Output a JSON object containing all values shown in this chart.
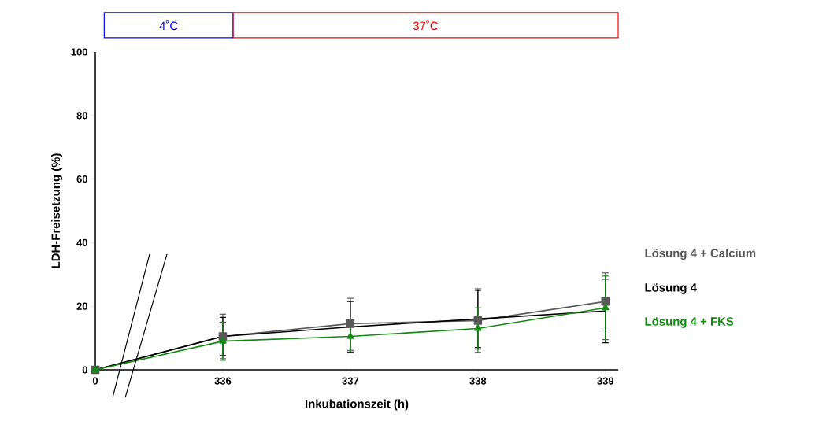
{
  "chart_data": {
    "type": "line",
    "xlabel": "Inkubationszeit (h)",
    "ylabel": "LDH-Freisetzung (%)",
    "categories": [
      "0",
      "336",
      "337",
      "338",
      "339"
    ],
    "ylim": [
      0,
      100
    ],
    "yticks": [
      0,
      20,
      40,
      60,
      80,
      100
    ],
    "grid": false,
    "legend": "right",
    "annotations": [
      "4˚C",
      "37˚C"
    ],
    "series": [
      {
        "name": "Lösung 4 + Calcium",
        "color": "#595959",
        "marker": "square",
        "values": [
          0,
          10.5,
          14.5,
          15.5,
          21.5
        ],
        "errors": [
          null,
          7,
          8,
          10,
          9
        ]
      },
      {
        "name": "Lösung 4",
        "color": "#000000",
        "marker": "none",
        "values": [
          0,
          10.5,
          13.5,
          16,
          18.5
        ],
        "errors": [
          null,
          6,
          8,
          9,
          10
        ]
      },
      {
        "name": "Lösung 4 + FKS",
        "color": "#138a13",
        "marker": "triangle",
        "values": [
          0,
          9,
          10.5,
          13,
          19.5
        ],
        "errors": [
          null,
          6,
          4.5,
          6.5,
          10
        ]
      }
    ]
  }
}
